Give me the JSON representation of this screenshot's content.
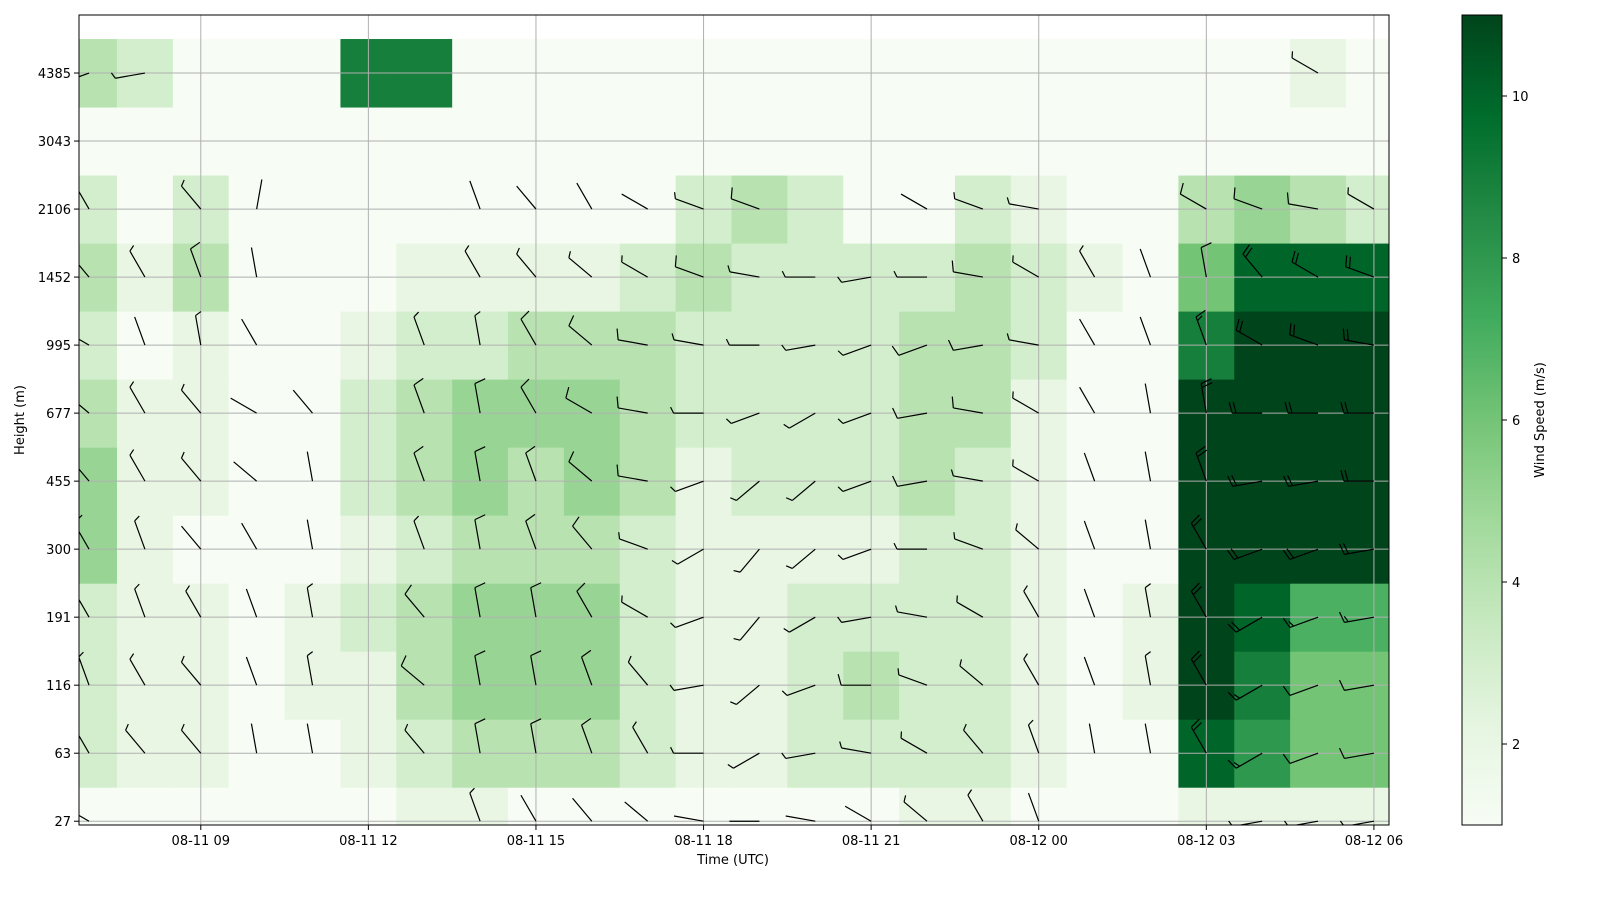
{
  "chart_data": {
    "type": "heatmap",
    "xlabel": "Time (UTC)",
    "ylabel": "Height (m)",
    "colorbar_label": "Wind Speed (m/s)",
    "colormap": "Greens",
    "grid": true,
    "xlim": [
      6.82,
      30.27
    ],
    "xticks": [
      {
        "value": 9,
        "label": "08-11 09"
      },
      {
        "value": 12,
        "label": "08-11 12"
      },
      {
        "value": 15,
        "label": "08-11 15"
      },
      {
        "value": 18,
        "label": "08-11 18"
      },
      {
        "value": 21,
        "label": "08-11 21"
      },
      {
        "value": 24,
        "label": "08-12 00"
      },
      {
        "value": 27,
        "label": "08-12 03"
      },
      {
        "value": 30,
        "label": "08-12 06"
      }
    ],
    "ylim": [
      25,
      5530
    ],
    "yticks": [
      27,
      63,
      116,
      191,
      300,
      455,
      677,
      995,
      1452,
      2106,
      3043,
      4385
    ],
    "zlim": [
      1,
      11
    ],
    "zticks": [
      2,
      4,
      6,
      8,
      10
    ],
    "x": [
      7,
      8,
      9,
      10,
      11,
      12,
      13,
      14,
      15,
      16,
      17,
      18,
      19,
      20,
      21,
      22,
      23,
      24,
      25,
      26,
      27,
      28,
      29,
      30
    ],
    "y": [
      27,
      63,
      116,
      191,
      300,
      455,
      677,
      995,
      1452,
      2106,
      3043,
      4385
    ],
    "z": [
      [
        1,
        1,
        1,
        1,
        1,
        1,
        2,
        2,
        1,
        1,
        1,
        1,
        1,
        1,
        1,
        2,
        2,
        1,
        1,
        1,
        2,
        2,
        2,
        2
      ],
      [
        3,
        2,
        2,
        1,
        1,
        2,
        3,
        4,
        4,
        4,
        3,
        2,
        2,
        3,
        3,
        3,
        3,
        2,
        1,
        1,
        10,
        8,
        6,
        6
      ],
      [
        3,
        2,
        2,
        1,
        2,
        2,
        4,
        5,
        5,
        5,
        3,
        2,
        2,
        3,
        4,
        3,
        3,
        2,
        1,
        2,
        11,
        9,
        6,
        6
      ],
      [
        3,
        2,
        2,
        1,
        2,
        3,
        4,
        5,
        5,
        5,
        3,
        2,
        2,
        3,
        3,
        3,
        3,
        2,
        1,
        2,
        11,
        10,
        7,
        7
      ],
      [
        5,
        2,
        1,
        1,
        1,
        2,
        3,
        4,
        4,
        4,
        3,
        2,
        2,
        2,
        2,
        3,
        3,
        2,
        1,
        1,
        11,
        11,
        11,
        11
      ],
      [
        5,
        2,
        2,
        1,
        1,
        3,
        4,
        5,
        4,
        5,
        4,
        2,
        3,
        3,
        3,
        4,
        3,
        2,
        1,
        1,
        11,
        11,
        11,
        11
      ],
      [
        4,
        2,
        2,
        1,
        1,
        3,
        4,
        5,
        5,
        5,
        4,
        3,
        3,
        3,
        3,
        4,
        4,
        2,
        1,
        1,
        11,
        11,
        11,
        11
      ],
      [
        3,
        1,
        2,
        1,
        1,
        2,
        3,
        3,
        4,
        4,
        4,
        3,
        3,
        3,
        3,
        4,
        4,
        3,
        1,
        1,
        9,
        11,
        11,
        11
      ],
      [
        4,
        2,
        4,
        1,
        1,
        1,
        2,
        2,
        2,
        2,
        3,
        4,
        3,
        3,
        3,
        3,
        4,
        3,
        2,
        1,
        6,
        10,
        10,
        10
      ],
      [
        3,
        1,
        3,
        1,
        1,
        1,
        1,
        1,
        1,
        1,
        1,
        3,
        4,
        3,
        1,
        1,
        3,
        2,
        1,
        1,
        4,
        5,
        4,
        3
      ],
      [
        1,
        1,
        1,
        1,
        1,
        1,
        1,
        1,
        1,
        1,
        1,
        1,
        1,
        1,
        1,
        1,
        1,
        1,
        1,
        1,
        1,
        1,
        1,
        1
      ],
      [
        4,
        3,
        1,
        1,
        1,
        9,
        9,
        1,
        1,
        1,
        1,
        1,
        1,
        1,
        1,
        1,
        1,
        1,
        1,
        1,
        1,
        1,
        2,
        1
      ]
    ],
    "direction": [
      [
        300,
        null,
        null,
        null,
        null,
        null,
        null,
        340,
        330,
        320,
        310,
        280,
        270,
        280,
        300,
        310,
        330,
        340,
        null,
        null,
        null,
        260,
        260,
        260
      ],
      [
        330,
        320,
        320,
        350,
        350,
        null,
        320,
        350,
        350,
        340,
        330,
        270,
        240,
        260,
        280,
        300,
        320,
        340,
        350,
        350,
        330,
        240,
        250,
        260
      ],
      [
        340,
        330,
        320,
        340,
        350,
        null,
        310,
        350,
        350,
        340,
        320,
        260,
        230,
        250,
        270,
        290,
        310,
        330,
        340,
        350,
        330,
        240,
        250,
        260
      ],
      [
        330,
        340,
        330,
        340,
        350,
        null,
        320,
        350,
        350,
        330,
        300,
        250,
        220,
        240,
        260,
        280,
        300,
        330,
        340,
        350,
        330,
        240,
        250,
        260
      ],
      [
        330,
        340,
        320,
        330,
        350,
        null,
        340,
        350,
        340,
        320,
        290,
        240,
        220,
        230,
        250,
        270,
        290,
        310,
        340,
        350,
        330,
        250,
        250,
        260
      ],
      [
        320,
        330,
        320,
        310,
        350,
        null,
        340,
        350,
        340,
        310,
        280,
        250,
        230,
        230,
        250,
        260,
        280,
        300,
        340,
        350,
        340,
        260,
        260,
        270
      ],
      [
        310,
        330,
        320,
        300,
        320,
        null,
        340,
        350,
        330,
        300,
        280,
        270,
        250,
        240,
        250,
        260,
        280,
        300,
        330,
        350,
        350,
        270,
        270,
        270
      ],
      [
        300,
        340,
        350,
        330,
        null,
        null,
        340,
        350,
        330,
        310,
        280,
        280,
        270,
        260,
        250,
        250,
        260,
        280,
        330,
        340,
        340,
        300,
        290,
        280
      ],
      [
        320,
        330,
        340,
        350,
        null,
        null,
        null,
        330,
        320,
        310,
        300,
        290,
        280,
        270,
        260,
        270,
        280,
        300,
        330,
        340,
        350,
        320,
        300,
        290
      ],
      [
        330,
        null,
        320,
        10,
        null,
        null,
        null,
        340,
        320,
        330,
        300,
        290,
        290,
        null,
        null,
        300,
        290,
        280,
        null,
        null,
        300,
        290,
        280,
        300
      ],
      [
        null,
        null,
        null,
        null,
        null,
        null,
        null,
        null,
        null,
        null,
        null,
        null,
        null,
        null,
        null,
        null,
        null,
        null,
        null,
        null,
        null,
        null,
        null,
        null
      ],
      [
        250,
        260,
        null,
        null,
        null,
        null,
        null,
        null,
        null,
        null,
        null,
        null,
        null,
        null,
        null,
        null,
        null,
        null,
        null,
        null,
        null,
        null,
        300,
        null
      ]
    ]
  }
}
